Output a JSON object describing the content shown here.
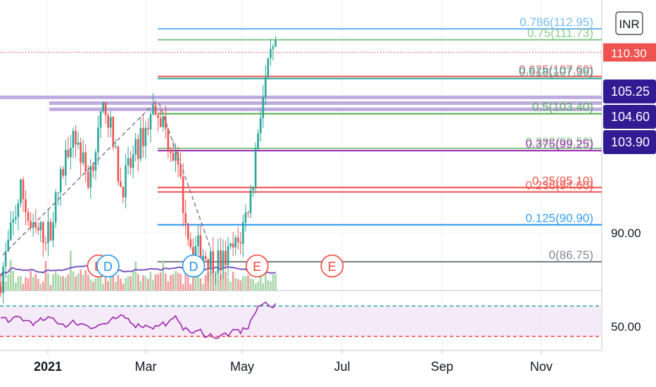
{
  "currency_label": "INR",
  "chart_data": {
    "type": "candlestick",
    "price_range": [
      83.5,
      116.2
    ],
    "current_price": {
      "label": "110.30",
      "value": 110.3,
      "color": "#ef5350"
    },
    "price_ticks": [
      {
        "label": "90.00",
        "value": 90.0
      }
    ],
    "badges": [
      {
        "label": "105.25",
        "value": 105.25
      },
      {
        "label": "104.60",
        "value": 104.6
      },
      {
        "label": "103.90",
        "value": 103.9
      }
    ],
    "fib_levels": [
      {
        "ratio": "0.786",
        "text": "0.786(112.95)",
        "value": 112.95,
        "color": "#64b5f6"
      },
      {
        "ratio": "0.75",
        "text": "0.75(111.73)",
        "value": 111.73,
        "color": "#81c784"
      },
      {
        "ratio": "0.625",
        "text": "0.625(107.60)",
        "value": 107.6,
        "color": "#ef5350"
      },
      {
        "ratio": "0.618",
        "text": "0.618(107.36)",
        "value": 107.36,
        "color": "#26a69a"
      },
      {
        "ratio": "0.5",
        "text": "0.5(103.40)",
        "value": 103.4,
        "color": "#4caf50"
      },
      {
        "ratio": "0.382",
        "text": "0.382(99.50)",
        "value": 99.5,
        "color": "#81c784"
      },
      {
        "ratio": "0.375",
        "text": "0.375(99.25)",
        "value": 99.25,
        "color": "#9c27b0"
      },
      {
        "ratio": "0.25",
        "text": "0.25(95.10)",
        "value": 95.1,
        "color": "#f44336"
      },
      {
        "ratio": "0.236",
        "text": "0.236(94.60)",
        "value": 94.6,
        "color": "#ef5350"
      },
      {
        "ratio": "0.125",
        "text": "0.125(90.90)",
        "value": 90.9,
        "color": "#2196f3"
      },
      {
        "ratio": "0",
        "text": "0(86.75)",
        "value": 86.75,
        "color": "#787b86"
      }
    ],
    "resistance_levels": [
      105.25,
      104.6,
      103.9
    ],
    "events": [
      {
        "label": "E",
        "kind": "earnings",
        "date": "2021-02-01"
      },
      {
        "label": "D",
        "kind": "dividend",
        "date": "2021-02-07"
      },
      {
        "label": "D",
        "kind": "dividend",
        "date": "2021-04-01"
      },
      {
        "label": "E",
        "kind": "earnings",
        "date": "2021-05-10"
      },
      {
        "label": "E",
        "kind": "earnings",
        "date": "2021-06-25"
      }
    ],
    "x_axis": [
      {
        "label": "2021",
        "bold": true
      },
      {
        "label": "Mar",
        "bold": false
      },
      {
        "label": "May",
        "bold": false
      },
      {
        "label": "Jul",
        "bold": false
      },
      {
        "label": "Sep",
        "bold": false
      },
      {
        "label": "Nov",
        "bold": false
      }
    ],
    "rsi": {
      "level_label": "50.00",
      "upper": 70,
      "middle": 50,
      "lower": 30,
      "color": "#9c27b0"
    },
    "colors": {
      "up": "#26a69a",
      "down": "#ef5350",
      "volume_up": "#a5d6a7",
      "volume_down": "#ef9a9a",
      "volume_ma": "#7e57c2",
      "band": "#b39ddb",
      "badge_bg": "#311b92"
    }
  }
}
